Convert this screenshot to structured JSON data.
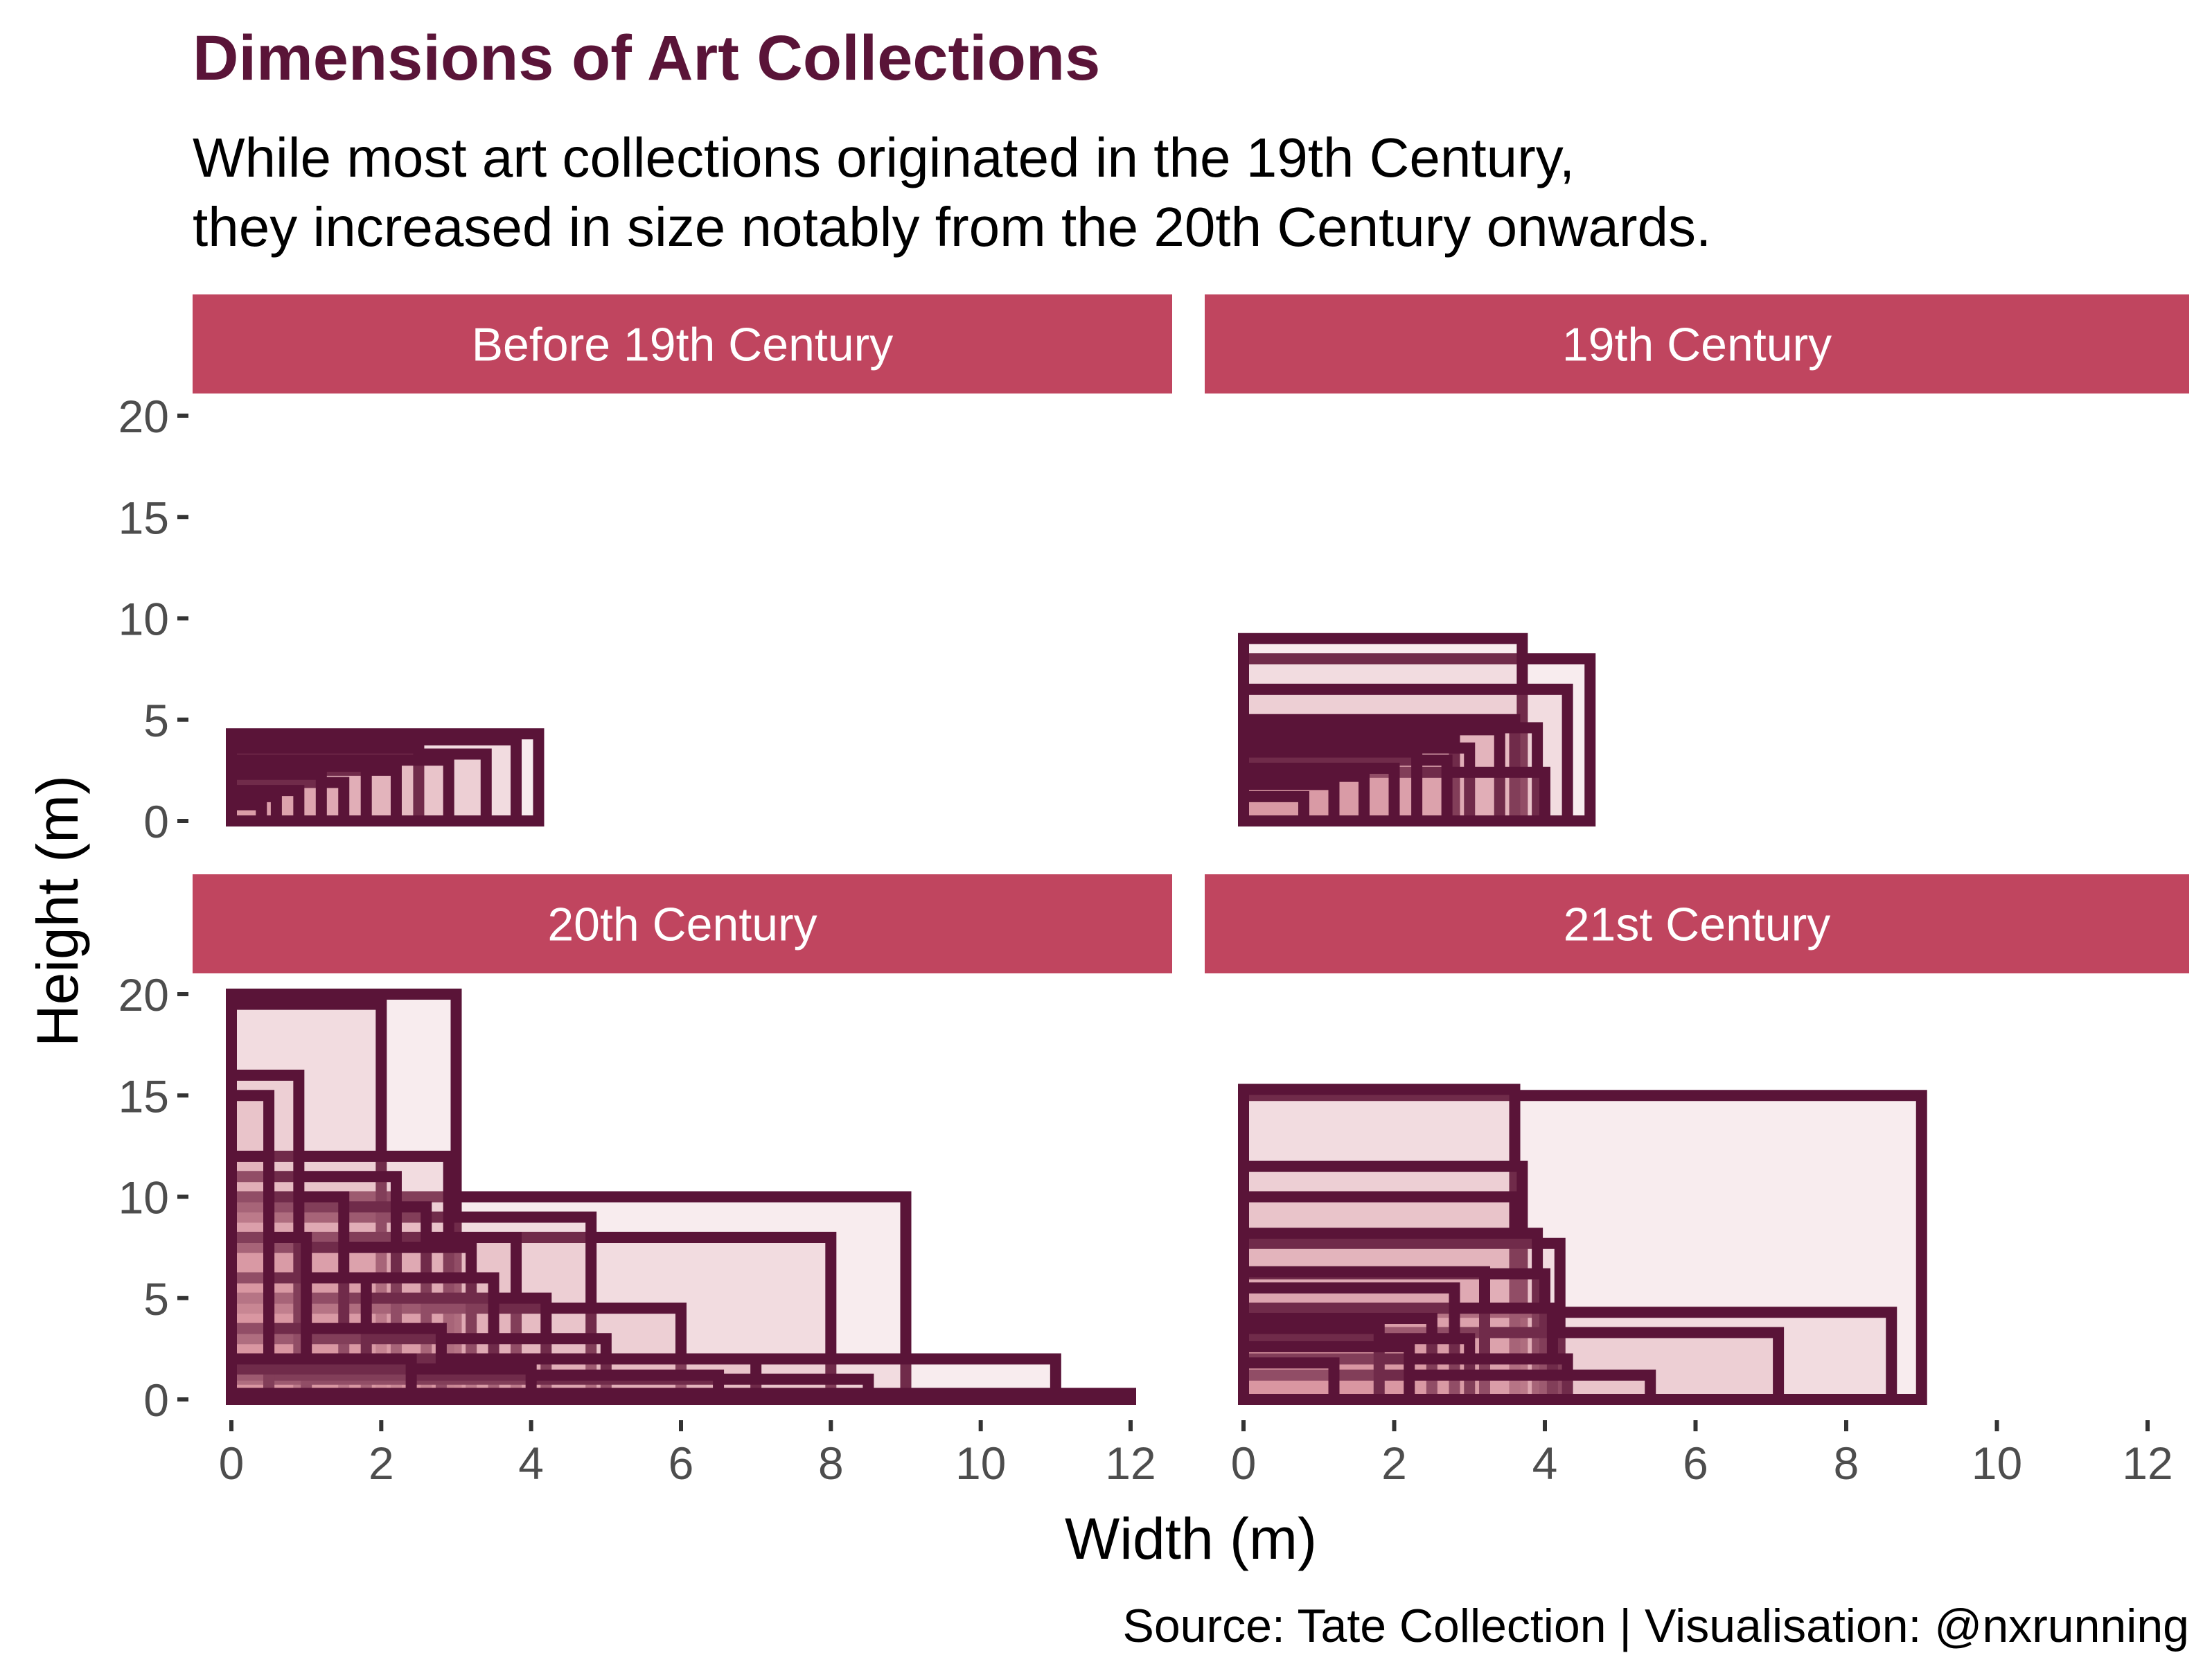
{
  "chart_data": {
    "type": "rect-faceted",
    "title": "Dimensions of Art Collections",
    "subtitle_lines": [
      "While most art collections originated in the 19th Century,",
      "they increased in size notably from the 20th Century onwards."
    ],
    "xlabel": "Width (m)",
    "ylabel": "Height (m)",
    "caption": "Source: Tate Collection | Visualisation: @nxrunning",
    "xlim": [
      0,
      12
    ],
    "ylim": [
      0,
      20
    ],
    "x_ticks": [
      "0",
      "2",
      "4",
      "6",
      "8",
      "10",
      "12"
    ],
    "y_ticks": [
      "0",
      "5",
      "10",
      "15",
      "20"
    ],
    "colors": {
      "title": "#5a1438",
      "strip": "#c0455f",
      "strip_text": "#ffffff",
      "outline": "#5a1438",
      "fill": "#d9949f",
      "tick_text": "#4d4d4d",
      "text": "#000000"
    },
    "facets": [
      {
        "name": "Before 19th Century",
        "rects": [
          [
            4.1,
            4.3
          ],
          [
            3.8,
            4.0
          ],
          [
            3.4,
            3.3
          ],
          [
            2.9,
            3.0
          ],
          [
            2.5,
            3.6
          ],
          [
            2.2,
            2.5
          ],
          [
            1.8,
            2.7
          ],
          [
            1.5,
            1.9
          ],
          [
            1.2,
            2.3
          ],
          [
            0.9,
            1.5
          ],
          [
            0.6,
            1.2
          ],
          [
            0.4,
            0.8
          ]
        ]
      },
      {
        "name": "19th Century",
        "rects": [
          [
            3.7,
            9.0
          ],
          [
            4.6,
            8.0
          ],
          [
            4.3,
            6.5
          ],
          [
            3.9,
            4.6
          ],
          [
            3.4,
            4.5
          ],
          [
            3.0,
            3.6
          ],
          [
            2.7,
            3.0
          ],
          [
            2.3,
            3.4
          ],
          [
            2.0,
            2.6
          ],
          [
            1.6,
            2.2
          ],
          [
            1.2,
            1.8
          ],
          [
            0.8,
            1.2
          ],
          [
            3.6,
            5.0
          ],
          [
            4.0,
            2.4
          ],
          [
            2.8,
            4.0
          ]
        ]
      },
      {
        "name": "20th Century",
        "rects": [
          [
            3.0,
            20.0
          ],
          [
            2.0,
            19.5
          ],
          [
            0.9,
            16.0
          ],
          [
            0.5,
            15.0
          ],
          [
            2.9,
            12.0
          ],
          [
            9.0,
            10.0
          ],
          [
            8.0,
            8.0
          ],
          [
            4.8,
            9.0
          ],
          [
            3.8,
            8.0
          ],
          [
            3.2,
            7.5
          ],
          [
            2.6,
            9.5
          ],
          [
            2.2,
            11.0
          ],
          [
            1.5,
            10.0
          ],
          [
            6.0,
            4.5
          ],
          [
            4.2,
            5.0
          ],
          [
            3.5,
            6.0
          ],
          [
            11.0,
            2.0
          ],
          [
            12.0,
            0.3
          ],
          [
            7.0,
            2.0
          ],
          [
            8.5,
            1.0
          ],
          [
            5.0,
            3.0
          ],
          [
            2.8,
            3.5
          ],
          [
            1.8,
            6.0
          ],
          [
            1.0,
            8.0
          ],
          [
            0.5,
            12.0
          ],
          [
            4.0,
            1.5
          ],
          [
            6.5,
            1.2
          ],
          [
            2.4,
            2.0
          ]
        ]
      },
      {
        "name": "21st Century",
        "rects": [
          [
            9.0,
            15.0
          ],
          [
            3.6,
            15.3
          ],
          [
            3.7,
            11.5
          ],
          [
            3.6,
            10.0
          ],
          [
            4.2,
            7.7
          ],
          [
            3.9,
            8.2
          ],
          [
            8.6,
            4.3
          ],
          [
            7.1,
            3.3
          ],
          [
            4.0,
            6.2
          ],
          [
            3.2,
            6.3
          ],
          [
            2.8,
            5.5
          ],
          [
            2.5,
            4.0
          ],
          [
            5.4,
            1.2
          ],
          [
            4.3,
            2.0
          ],
          [
            2.2,
            2.6
          ],
          [
            1.8,
            3.5
          ],
          [
            1.2,
            1.8
          ],
          [
            3.0,
            3.0
          ],
          [
            4.1,
            4.5
          ]
        ]
      }
    ]
  }
}
